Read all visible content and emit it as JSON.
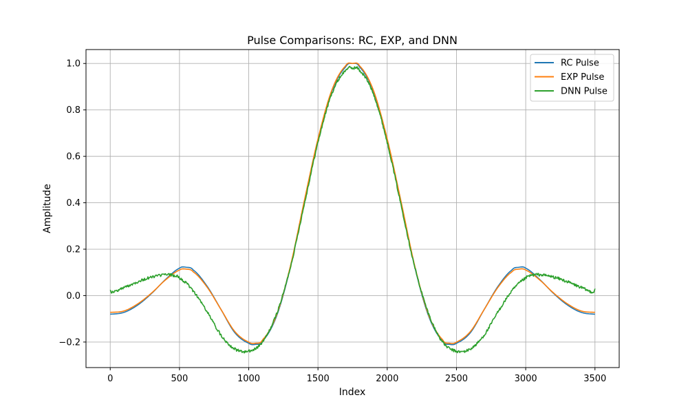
{
  "chart_data": {
    "type": "line",
    "title": "Pulse Comparisons: RC, EXP, and DNN",
    "xlabel": "Index",
    "ylabel": "Amplitude",
    "xlim": [
      -175,
      3675
    ],
    "ylim": [
      -0.31,
      1.06
    ],
    "xticks": [
      0,
      500,
      1000,
      1500,
      2000,
      2500,
      3000,
      3500
    ],
    "yticks": [
      -0.2,
      0.0,
      0.2,
      0.4,
      0.6,
      0.8,
      1.0
    ],
    "xtick_labels": [
      "0",
      "500",
      "1000",
      "1500",
      "2000",
      "2500",
      "3000",
      "3500"
    ],
    "ytick_labels": [
      "−0.2",
      "0.0",
      "0.2",
      "0.4",
      "0.6",
      "0.8",
      "1.0"
    ],
    "grid": true,
    "legend_position": "upper-right",
    "series": [
      {
        "name": "RC Pulse",
        "color": "#1f77b4",
        "x": [
          0,
          100,
          200,
          300,
          400,
          500,
          550,
          600,
          700,
          800,
          900,
          1000,
          1050,
          1100,
          1200,
          1300,
          1400,
          1500,
          1600,
          1700,
          1750,
          1800,
          1900,
          2000,
          2100,
          2200,
          2300,
          2400,
          2450,
          2500,
          2600,
          2700,
          2800,
          2900,
          2950,
          3000,
          3100,
          3200,
          3300,
          3400,
          3500
        ],
        "y": [
          -0.08,
          -0.072,
          -0.04,
          0.01,
          0.07,
          0.118,
          0.122,
          0.11,
          0.04,
          -0.06,
          -0.16,
          -0.205,
          -0.21,
          -0.195,
          -0.09,
          0.12,
          0.4,
          0.67,
          0.88,
          0.985,
          1.0,
          0.985,
          0.88,
          0.67,
          0.4,
          0.12,
          -0.09,
          -0.195,
          -0.21,
          -0.205,
          -0.16,
          -0.06,
          0.04,
          0.11,
          0.122,
          0.118,
          0.07,
          0.01,
          -0.04,
          -0.072,
          -0.08
        ]
      },
      {
        "name": "EXP Pulse",
        "color": "#ff7f0e",
        "x": [
          0,
          100,
          200,
          300,
          400,
          500,
          550,
          600,
          700,
          800,
          900,
          1000,
          1050,
          1100,
          1200,
          1300,
          1400,
          1500,
          1600,
          1700,
          1750,
          1800,
          1900,
          2000,
          2100,
          2200,
          2300,
          2400,
          2450,
          2500,
          2600,
          2700,
          2800,
          2900,
          2950,
          3000,
          3100,
          3200,
          3300,
          3400,
          3500
        ],
        "y": [
          -0.072,
          -0.066,
          -0.035,
          0.012,
          0.068,
          0.11,
          0.114,
          0.102,
          0.036,
          -0.06,
          -0.155,
          -0.2,
          -0.205,
          -0.19,
          -0.085,
          0.125,
          0.405,
          0.675,
          0.885,
          0.99,
          1.0,
          0.99,
          0.885,
          0.675,
          0.405,
          0.125,
          -0.085,
          -0.19,
          -0.205,
          -0.2,
          -0.155,
          -0.06,
          0.036,
          0.102,
          0.114,
          0.11,
          0.068,
          0.012,
          -0.035,
          -0.066,
          -0.072
        ]
      },
      {
        "name": "DNN Pulse",
        "color": "#2ca02c",
        "x": [
          0,
          10,
          100,
          200,
          300,
          400,
          450,
          500,
          600,
          700,
          800,
          900,
          1000,
          1100,
          1200,
          1300,
          1400,
          1500,
          1600,
          1700,
          1750,
          1800,
          1900,
          2000,
          2100,
          2200,
          2300,
          2400,
          2500,
          2600,
          2700,
          2800,
          2900,
          3000,
          3050,
          3100,
          3200,
          3300,
          3400,
          3490,
          3500
        ],
        "y": [
          0.028,
          0.015,
          0.035,
          0.06,
          0.08,
          0.09,
          0.088,
          0.075,
          0.02,
          -0.07,
          -0.17,
          -0.23,
          -0.24,
          -0.2,
          -0.08,
          0.12,
          0.39,
          0.66,
          0.87,
          0.97,
          0.98,
          0.97,
          0.87,
          0.66,
          0.39,
          0.12,
          -0.08,
          -0.2,
          -0.24,
          -0.23,
          -0.17,
          -0.07,
          0.02,
          0.075,
          0.088,
          0.09,
          0.08,
          0.06,
          0.035,
          0.015,
          0.028
        ],
        "noise": 0.006
      }
    ]
  }
}
